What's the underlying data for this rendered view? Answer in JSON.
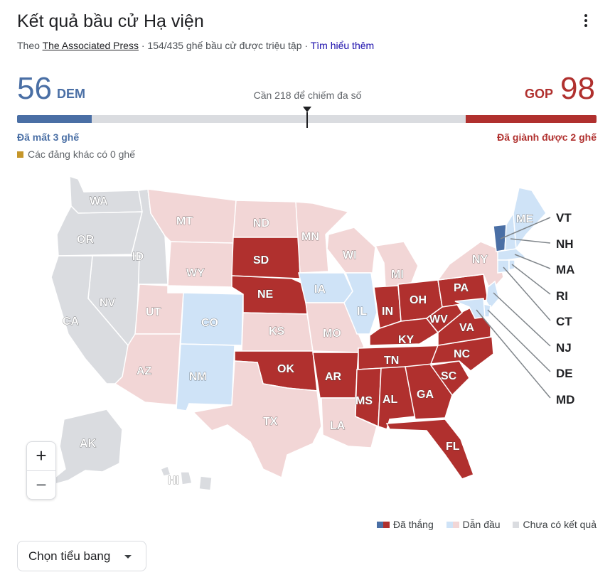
{
  "header": {
    "title": "Kết quả bầu cử Hạ viện",
    "source_prefix": "Theo",
    "source_name": "The Associated Press",
    "sep1": "·",
    "seats_reporting": "154/435 ghế bầu cử được triệu tập",
    "sep2": "·",
    "learn_more": "Tìm hiểu thêm",
    "menu_icon": "more-vert-icon"
  },
  "tally": {
    "dem_seats": "56",
    "dem_label": "DEM",
    "gop_seats": "98",
    "gop_label": "GOP",
    "majority_text": "Cần 218 để chiếm đa số",
    "majority_threshold": 218,
    "total_seats": 435,
    "dem_status": "Đã mất 3 ghế",
    "gop_status": "Đã giành được 2 ghế",
    "others_text": "Các đảng khác có 0 ghế"
  },
  "colors": {
    "dem": "#4a6fa5",
    "gop": "#b0302e",
    "dem_leading": "#cfe3f7",
    "gop_leading": "#f2d6d6",
    "no_result": "#dadce0",
    "other_party": "#c5962a"
  },
  "map": {
    "states": [
      {
        "code": "WA",
        "status": "none"
      },
      {
        "code": "OR",
        "status": "none"
      },
      {
        "code": "ID",
        "status": "none"
      },
      {
        "code": "NV",
        "status": "none"
      },
      {
        "code": "CA",
        "status": "none"
      },
      {
        "code": "MT",
        "status": "gop_lead"
      },
      {
        "code": "WY",
        "status": "gop_lead"
      },
      {
        "code": "UT",
        "status": "gop_lead"
      },
      {
        "code": "AZ",
        "status": "gop_lead"
      },
      {
        "code": "CO",
        "status": "dem_lead"
      },
      {
        "code": "NM",
        "status": "dem_lead"
      },
      {
        "code": "ND",
        "status": "gop_lead"
      },
      {
        "code": "SD",
        "status": "gop_won"
      },
      {
        "code": "NE",
        "status": "gop_won"
      },
      {
        "code": "KS",
        "status": "gop_lead"
      },
      {
        "code": "OK",
        "status": "gop_won"
      },
      {
        "code": "TX",
        "status": "gop_lead"
      },
      {
        "code": "MN",
        "status": "gop_lead"
      },
      {
        "code": "IA",
        "status": "dem_lead"
      },
      {
        "code": "MO",
        "status": "gop_lead"
      },
      {
        "code": "AR",
        "status": "gop_won"
      },
      {
        "code": "LA",
        "status": "gop_lead"
      },
      {
        "code": "WI",
        "status": "gop_lead"
      },
      {
        "code": "IL",
        "status": "dem_lead"
      },
      {
        "code": "MI",
        "status": "gop_lead"
      },
      {
        "code": "IN",
        "status": "gop_won"
      },
      {
        "code": "OH",
        "status": "gop_won"
      },
      {
        "code": "KY",
        "status": "gop_won"
      },
      {
        "code": "TN",
        "status": "gop_won"
      },
      {
        "code": "MS",
        "status": "gop_won"
      },
      {
        "code": "AL",
        "status": "gop_won"
      },
      {
        "code": "GA",
        "status": "gop_won"
      },
      {
        "code": "FL",
        "status": "gop_won"
      },
      {
        "code": "SC",
        "status": "gop_won"
      },
      {
        "code": "NC",
        "status": "gop_won"
      },
      {
        "code": "VA",
        "status": "gop_won"
      },
      {
        "code": "WV",
        "status": "gop_won"
      },
      {
        "code": "PA",
        "status": "gop_won"
      },
      {
        "code": "NY",
        "status": "gop_lead"
      },
      {
        "code": "ME",
        "status": "dem_lead"
      },
      {
        "code": "VT",
        "status": "dem_won"
      },
      {
        "code": "NH",
        "status": "dem_lead"
      },
      {
        "code": "MA",
        "status": "dem_lead"
      },
      {
        "code": "RI",
        "status": "dem_lead"
      },
      {
        "code": "CT",
        "status": "dem_lead"
      },
      {
        "code": "NJ",
        "status": "dem_lead"
      },
      {
        "code": "DE",
        "status": "dem_lead"
      },
      {
        "code": "MD",
        "status": "dem_lead"
      },
      {
        "code": "AK",
        "status": "none"
      },
      {
        "code": "HI",
        "status": "none"
      }
    ],
    "external_labels": [
      "VT",
      "NH",
      "MA",
      "RI",
      "CT",
      "NJ",
      "DE",
      "MD"
    ],
    "zoom_in": "+",
    "zoom_out": "−"
  },
  "legend": {
    "won": "Đã thắng",
    "leading": "Dẫn đầu",
    "no_result": "Chưa có kết quả"
  },
  "state_select": {
    "label": "Chọn tiểu bang",
    "icon": "dropdown-arrow-icon"
  }
}
